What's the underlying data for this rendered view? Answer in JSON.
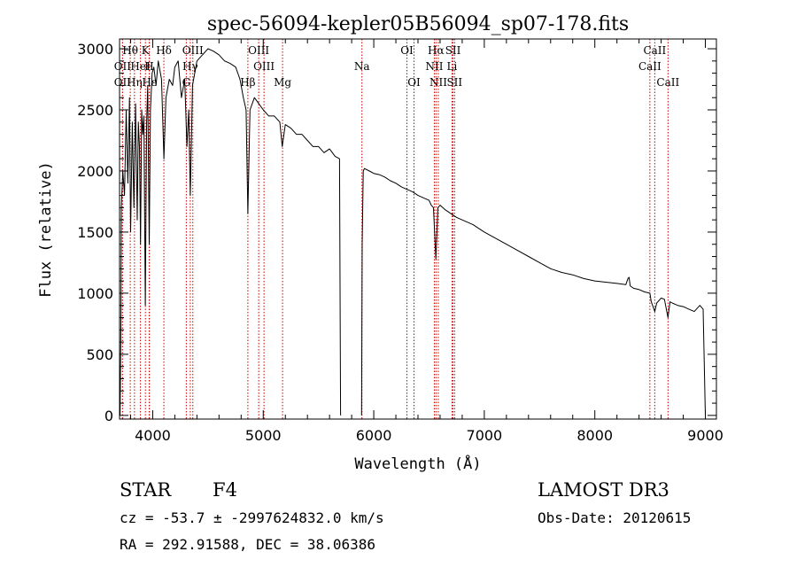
{
  "chart_data": {
    "type": "line",
    "title": "spec-56094-kepler05B56094_sp07-178.fits",
    "xlabel": "Wavelength (Å)",
    "ylabel": "Flux (relative)",
    "xlim": [
      3700,
      9100
    ],
    "ylim": [
      -30,
      3080
    ],
    "xticks": [
      4000,
      5000,
      6000,
      7000,
      8000,
      9000
    ],
    "yticks": [
      0,
      500,
      1000,
      1500,
      2000,
      2500,
      3000
    ],
    "grid": false,
    "spectrum": {
      "segments": [
        {
          "x": [
            3705,
            3713,
            3716,
            3730,
            3745,
            3760,
            3775,
            3790,
            3800,
            3815,
            3830,
            3845,
            3860,
            3870,
            3880,
            3890,
            3900,
            3910,
            3920,
            3933,
            3945,
            3955,
            3968,
            3980,
            3995,
            4010,
            4030,
            4050,
            4080,
            4101,
            4120,
            4150,
            4180,
            4200,
            4230,
            4260,
            4290,
            4310,
            4326,
            4340,
            4360,
            4400,
            4450,
            4500,
            4550,
            4600,
            4650,
            4700,
            4750,
            4790,
            4820,
            4845,
            4861,
            4880,
            4920,
            4960,
            5000,
            5050,
            5100,
            5150,
            5172,
            5200,
            5250,
            5300,
            5350,
            5400,
            5450,
            5500,
            5550,
            5600,
            5650,
            5690,
            5700
          ],
          "y": [
            0,
            800,
            1700,
            2000,
            1800,
            2500,
            1900,
            2600,
            1500,
            2400,
            1700,
            2550,
            1600,
            2400,
            2200,
            1400,
            2500,
            2300,
            2450,
            900,
            2400,
            2700,
            1400,
            2500,
            2800,
            2850,
            2700,
            2900,
            2750,
            2100,
            2600,
            2750,
            2700,
            2850,
            2900,
            2600,
            2750,
            2200,
            2500,
            1800,
            2700,
            2900,
            2950,
            3000,
            2980,
            2950,
            2900,
            2880,
            2850,
            2750,
            2600,
            2500,
            1650,
            2500,
            2600,
            2550,
            2500,
            2450,
            2450,
            2400,
            2200,
            2380,
            2350,
            2300,
            2300,
            2250,
            2200,
            2200,
            2150,
            2180,
            2120,
            2100,
            0
          ]
        },
        {
          "x": [
            5890,
            5895,
            5905,
            5915,
            5960,
            6000,
            6050,
            6100,
            6150,
            6200,
            6250,
            6300,
            6350,
            6400,
            6450,
            6500,
            6520,
            6540,
            6562,
            6580,
            6600,
            6650,
            6700,
            6750,
            6800,
            6850,
            6900,
            6950,
            7000,
            7100,
            7200,
            7300,
            7400,
            7500,
            7600,
            7700,
            7800,
            7900,
            8000,
            8100,
            8200,
            8280,
            8300,
            8310,
            8320,
            8350,
            8400,
            8450,
            8498,
            8510,
            8542,
            8560,
            8600,
            8630,
            8662,
            8680,
            8700,
            8750,
            8800,
            8850,
            8900,
            8950,
            8980,
            9000
          ],
          "y": [
            0,
            1400,
            2000,
            2020,
            2000,
            1980,
            1970,
            1950,
            1920,
            1900,
            1870,
            1850,
            1830,
            1800,
            1780,
            1760,
            1720,
            1700,
            1280,
            1700,
            1720,
            1680,
            1650,
            1620,
            1600,
            1580,
            1560,
            1530,
            1500,
            1450,
            1400,
            1350,
            1300,
            1250,
            1200,
            1170,
            1150,
            1120,
            1100,
            1090,
            1080,
            1070,
            1120,
            1130,
            1060,
            1040,
            1030,
            1010,
            1000,
            930,
            850,
            920,
            960,
            950,
            800,
            930,
            920,
            900,
            890,
            870,
            850,
            900,
            870,
            0
          ]
        }
      ]
    },
    "lines": [
      {
        "label": "Hθ",
        "x": 3797,
        "row": 1
      },
      {
        "label": "OII",
        "x": 3727,
        "row": 2
      },
      {
        "label": "OII",
        "x": 3727,
        "row": 3
      },
      {
        "label": "K",
        "x": 3934,
        "row": 1
      },
      {
        "label": "HeI",
        "x": 3889,
        "row": 2
      },
      {
        "label": "Hη",
        "x": 3835,
        "row": 3
      },
      {
        "label": "Hδ",
        "x": 4101,
        "row": 1
      },
      {
        "label": "H",
        "x": 3968,
        "row": 2
      },
      {
        "label": "Hε",
        "x": 3970,
        "row": 3
      },
      {
        "label": "OIII",
        "x": 4363,
        "row": 1
      },
      {
        "label": "Hγ",
        "x": 4340,
        "row": 2
      },
      {
        "label": "G",
        "x": 4304,
        "row": 3
      },
      {
        "label": "OIII",
        "x": 4959,
        "row": 1
      },
      {
        "label": "OIII",
        "x": 5007,
        "row": 2
      },
      {
        "label": "Hβ",
        "x": 4861,
        "row": 3
      },
      {
        "label": "Mg",
        "x": 5175,
        "row": 3
      },
      {
        "label": "Na",
        "x": 5893,
        "row": 2
      },
      {
        "label": "OI",
        "x": 6300,
        "row": 1
      },
      {
        "label": "OI",
        "x": 6364,
        "row": 3
      },
      {
        "label": "Hα",
        "x": 6563,
        "row": 1
      },
      {
        "label": "SII",
        "x": 6717,
        "row": 1
      },
      {
        "label": "NII",
        "x": 6548,
        "row": 2
      },
      {
        "label": "Li",
        "x": 6708,
        "row": 2
      },
      {
        "label": "NII",
        "x": 6584,
        "row": 3
      },
      {
        "label": "SII",
        "x": 6731,
        "row": 3
      },
      {
        "label": "CaII",
        "x": 8542,
        "row": 1
      },
      {
        "label": "CaII",
        "x": 8498,
        "row": 2
      },
      {
        "label": "CaII",
        "x": 8662,
        "row": 3
      }
    ],
    "line_color": "#cc0000"
  },
  "info": {
    "object_class": "STAR",
    "subclass": "F4",
    "survey": "LAMOST DR3",
    "cz_text": "cz = -53.7 ± -2997624832.0 km/s",
    "obs_date_text": "Obs-Date: 20120615",
    "coords_text": "RA = 292.91588, DEC =  38.06386"
  }
}
